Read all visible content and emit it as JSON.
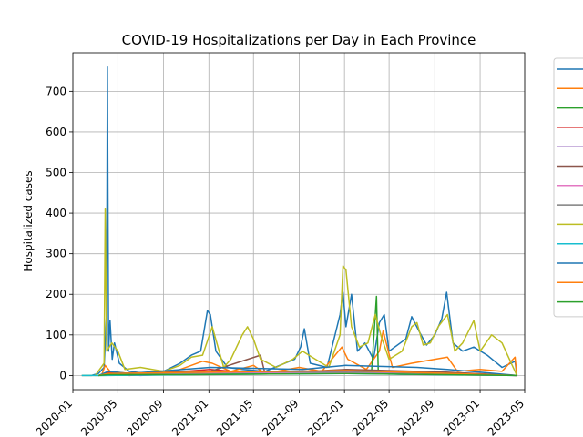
{
  "chart_data": {
    "type": "line",
    "title": "COVID-19 Hospitalizations per Day in Each Province",
    "xlabel": "",
    "ylabel": "Hospitalized cases",
    "xlim": [
      "2020-01-01",
      "2023-05-01"
    ],
    "ylim": [
      -35,
      795
    ],
    "grid": true,
    "legend_position": "outside-right",
    "x_ticks": [
      "2020-01",
      "2020-05",
      "2020-09",
      "2021-01",
      "2021-05",
      "2021-09",
      "2022-01",
      "2022-05",
      "2022-09",
      "2023-01",
      "2023-05"
    ],
    "y_ticks": [
      0,
      100,
      200,
      300,
      400,
      500,
      600,
      700
    ],
    "series": [
      {
        "color": "#1f77b4",
        "points": [
          [
            "2020-01-25",
            0
          ],
          [
            "2020-02-20",
            0
          ],
          [
            "2020-03-10",
            5
          ],
          [
            "2020-03-25",
            20
          ],
          [
            "2020-04-01",
            160
          ],
          [
            "2020-04-03",
            760
          ],
          [
            "2020-04-06",
            60
          ],
          [
            "2020-04-10",
            135
          ],
          [
            "2020-04-16",
            40
          ],
          [
            "2020-04-22",
            80
          ],
          [
            "2020-05-05",
            30
          ],
          [
            "2020-06-01",
            10
          ],
          [
            "2020-07-15",
            5
          ],
          [
            "2020-09-01",
            10
          ],
          [
            "2020-10-15",
            30
          ],
          [
            "2020-11-15",
            50
          ],
          [
            "2020-12-10",
            60
          ],
          [
            "2020-12-28",
            160
          ],
          [
            "2021-01-05",
            150
          ],
          [
            "2021-01-20",
            60
          ],
          [
            "2021-02-20",
            20
          ],
          [
            "2021-04-01",
            15
          ],
          [
            "2021-06-01",
            10
          ],
          [
            "2021-08-20",
            40
          ],
          [
            "2021-09-05",
            70
          ],
          [
            "2021-09-15",
            115
          ],
          [
            "2021-10-01",
            30
          ],
          [
            "2021-11-15",
            20
          ],
          [
            "2021-12-20",
            150
          ],
          [
            "2021-12-28",
            205
          ],
          [
            "2022-01-05",
            120
          ],
          [
            "2022-01-20",
            200
          ],
          [
            "2022-02-05",
            60
          ],
          [
            "2022-02-25",
            80
          ],
          [
            "2022-03-20",
            40
          ],
          [
            "2022-04-05",
            130
          ],
          [
            "2022-04-18",
            150
          ],
          [
            "2022-05-01",
            60
          ],
          [
            "2022-06-15",
            90
          ],
          [
            "2022-07-01",
            145
          ],
          [
            "2022-07-20",
            110
          ],
          [
            "2022-08-10",
            75
          ],
          [
            "2022-09-01",
            100
          ],
          [
            "2022-09-20",
            140
          ],
          [
            "2022-10-03",
            205
          ],
          [
            "2022-10-20",
            80
          ],
          [
            "2022-11-15",
            60
          ],
          [
            "2022-12-15",
            70
          ],
          [
            "2023-01-20",
            50
          ],
          [
            "2023-03-01",
            20
          ],
          [
            "2023-04-05",
            35
          ],
          [
            "2023-04-10",
            0
          ]
        ]
      },
      {
        "color": "#ff7f0e",
        "points": [
          [
            "2020-03-20",
            5
          ],
          [
            "2020-03-28",
            25
          ],
          [
            "2020-04-10",
            10
          ],
          [
            "2020-06-01",
            5
          ],
          [
            "2020-10-01",
            10
          ],
          [
            "2020-11-15",
            25
          ],
          [
            "2020-12-15",
            35
          ],
          [
            "2021-01-10",
            30
          ],
          [
            "2021-03-01",
            10
          ],
          [
            "2021-05-01",
            25
          ],
          [
            "2021-06-01",
            5
          ],
          [
            "2021-09-01",
            20
          ],
          [
            "2021-11-01",
            10
          ],
          [
            "2021-12-25",
            70
          ],
          [
            "2022-01-10",
            40
          ],
          [
            "2022-03-01",
            15
          ],
          [
            "2022-04-05",
            60
          ],
          [
            "2022-04-15",
            110
          ],
          [
            "2022-05-10",
            20
          ],
          [
            "2022-07-01",
            30
          ],
          [
            "2022-09-01",
            40
          ],
          [
            "2022-10-05",
            45
          ],
          [
            "2022-11-01",
            10
          ],
          [
            "2023-01-01",
            15
          ],
          [
            "2023-03-01",
            10
          ],
          [
            "2023-04-05",
            45
          ],
          [
            "2023-04-10",
            0
          ]
        ]
      },
      {
        "color": "#2ca02c",
        "points": [
          [
            "2020-03-01",
            0
          ],
          [
            "2021-11-01",
            5
          ],
          [
            "2022-01-01",
            5
          ],
          [
            "2022-03-15",
            10
          ],
          [
            "2022-03-28",
            195
          ],
          [
            "2022-04-02",
            5
          ],
          [
            "2022-06-01",
            5
          ],
          [
            "2023-01-01",
            2
          ],
          [
            "2023-04-10",
            0
          ]
        ]
      },
      {
        "color": "#d62728",
        "points": [
          [
            "2020-03-10",
            0
          ],
          [
            "2020-04-05",
            8
          ],
          [
            "2020-06-01",
            0
          ],
          [
            "2021-01-05",
            15
          ],
          [
            "2021-04-01",
            8
          ],
          [
            "2022-01-05",
            12
          ],
          [
            "2022-09-01",
            5
          ],
          [
            "2023-04-10",
            0
          ]
        ]
      },
      {
        "color": "#9467bd",
        "points": [
          [
            "2020-03-10",
            0
          ],
          [
            "2020-04-05",
            5
          ],
          [
            "2020-07-01",
            0
          ],
          [
            "2021-01-05",
            8
          ],
          [
            "2022-01-05",
            10
          ],
          [
            "2022-06-01",
            3
          ],
          [
            "2023-04-10",
            0
          ]
        ]
      },
      {
        "color": "#8c564b",
        "points": [
          [
            "2020-03-10",
            0
          ],
          [
            "2020-04-05",
            5
          ],
          [
            "2021-01-05",
            10
          ],
          [
            "2021-05-20",
            50
          ],
          [
            "2021-06-01",
            5
          ],
          [
            "2022-01-05",
            15
          ],
          [
            "2022-10-01",
            8
          ],
          [
            "2023-04-10",
            0
          ]
        ]
      },
      {
        "color": "#e377c2",
        "points": [
          [
            "2020-03-10",
            0
          ],
          [
            "2020-04-05",
            3
          ],
          [
            "2021-01-05",
            5
          ],
          [
            "2022-01-05",
            8
          ],
          [
            "2022-07-01",
            4
          ],
          [
            "2023-04-10",
            0
          ]
        ]
      },
      {
        "color": "#7f7f7f",
        "points": [
          [
            "2020-03-10",
            0
          ],
          [
            "2020-04-05",
            5
          ],
          [
            "2021-01-05",
            8
          ],
          [
            "2022-01-05",
            10
          ],
          [
            "2022-09-01",
            6
          ],
          [
            "2023-04-10",
            0
          ]
        ]
      },
      {
        "color": "#bcbd22",
        "points": [
          [
            "2020-01-25",
            0
          ],
          [
            "2020-03-01",
            0
          ],
          [
            "2020-03-25",
            30
          ],
          [
            "2020-03-28",
            410
          ],
          [
            "2020-04-01",
            60
          ],
          [
            "2020-04-15",
            80
          ],
          [
            "2020-05-01",
            60
          ],
          [
            "2020-05-20",
            15
          ],
          [
            "2020-07-01",
            20
          ],
          [
            "2020-09-01",
            10
          ],
          [
            "2020-10-15",
            25
          ],
          [
            "2020-11-15",
            45
          ],
          [
            "2020-12-15",
            50
          ],
          [
            "2021-01-10",
            120
          ],
          [
            "2021-02-10",
            20
          ],
          [
            "2021-03-01",
            40
          ],
          [
            "2021-04-01",
            100
          ],
          [
            "2021-04-15",
            120
          ],
          [
            "2021-05-01",
            90
          ],
          [
            "2021-05-20",
            40
          ],
          [
            "2021-07-01",
            20
          ],
          [
            "2021-08-15",
            40
          ],
          [
            "2021-09-10",
            60
          ],
          [
            "2021-10-15",
            40
          ],
          [
            "2021-11-20",
            20
          ],
          [
            "2021-12-20",
            100
          ],
          [
            "2021-12-28",
            270
          ],
          [
            "2022-01-05",
            260
          ],
          [
            "2022-01-20",
            120
          ],
          [
            "2022-02-10",
            70
          ],
          [
            "2022-03-05",
            80
          ],
          [
            "2022-03-25",
            150
          ],
          [
            "2022-04-10",
            95
          ],
          [
            "2022-05-01",
            40
          ],
          [
            "2022-06-05",
            60
          ],
          [
            "2022-07-01",
            120
          ],
          [
            "2022-07-15",
            130
          ],
          [
            "2022-08-01",
            75
          ],
          [
            "2022-08-20",
            80
          ],
          [
            "2022-09-10",
            120
          ],
          [
            "2022-10-05",
            150
          ],
          [
            "2022-10-25",
            60
          ],
          [
            "2022-11-15",
            80
          ],
          [
            "2022-12-15",
            135
          ],
          [
            "2023-01-01",
            60
          ],
          [
            "2023-02-01",
            100
          ],
          [
            "2023-03-01",
            80
          ],
          [
            "2023-04-10",
            0
          ]
        ]
      },
      {
        "color": "#17becf",
        "points": [
          [
            "2020-01-25",
            0
          ],
          [
            "2020-03-15",
            0
          ],
          [
            "2021-01-05",
            3
          ],
          [
            "2022-01-05",
            5
          ],
          [
            "2022-09-01",
            2
          ],
          [
            "2023-04-10",
            0
          ]
        ]
      },
      {
        "color": "#1f77b4",
        "points": [
          [
            "2020-03-10",
            0
          ],
          [
            "2020-04-05",
            10
          ],
          [
            "2020-06-01",
            5
          ],
          [
            "2021-01-05",
            20
          ],
          [
            "2021-09-10",
            15
          ],
          [
            "2022-01-05",
            25
          ],
          [
            "2022-07-15",
            20
          ],
          [
            "2022-10-05",
            15
          ],
          [
            "2023-04-10",
            0
          ]
        ]
      },
      {
        "color": "#ff7f0e",
        "points": [
          [
            "2020-03-10",
            0
          ],
          [
            "2020-04-05",
            5
          ],
          [
            "2021-01-05",
            8
          ],
          [
            "2022-01-05",
            12
          ],
          [
            "2022-09-01",
            6
          ],
          [
            "2023-04-10",
            0
          ]
        ]
      },
      {
        "color": "#2ca02c",
        "points": [
          [
            "2020-03-10",
            0
          ],
          [
            "2020-04-05",
            2
          ],
          [
            "2021-01-05",
            3
          ],
          [
            "2022-01-05",
            5
          ],
          [
            "2023-04-10",
            0
          ]
        ]
      }
    ]
  }
}
